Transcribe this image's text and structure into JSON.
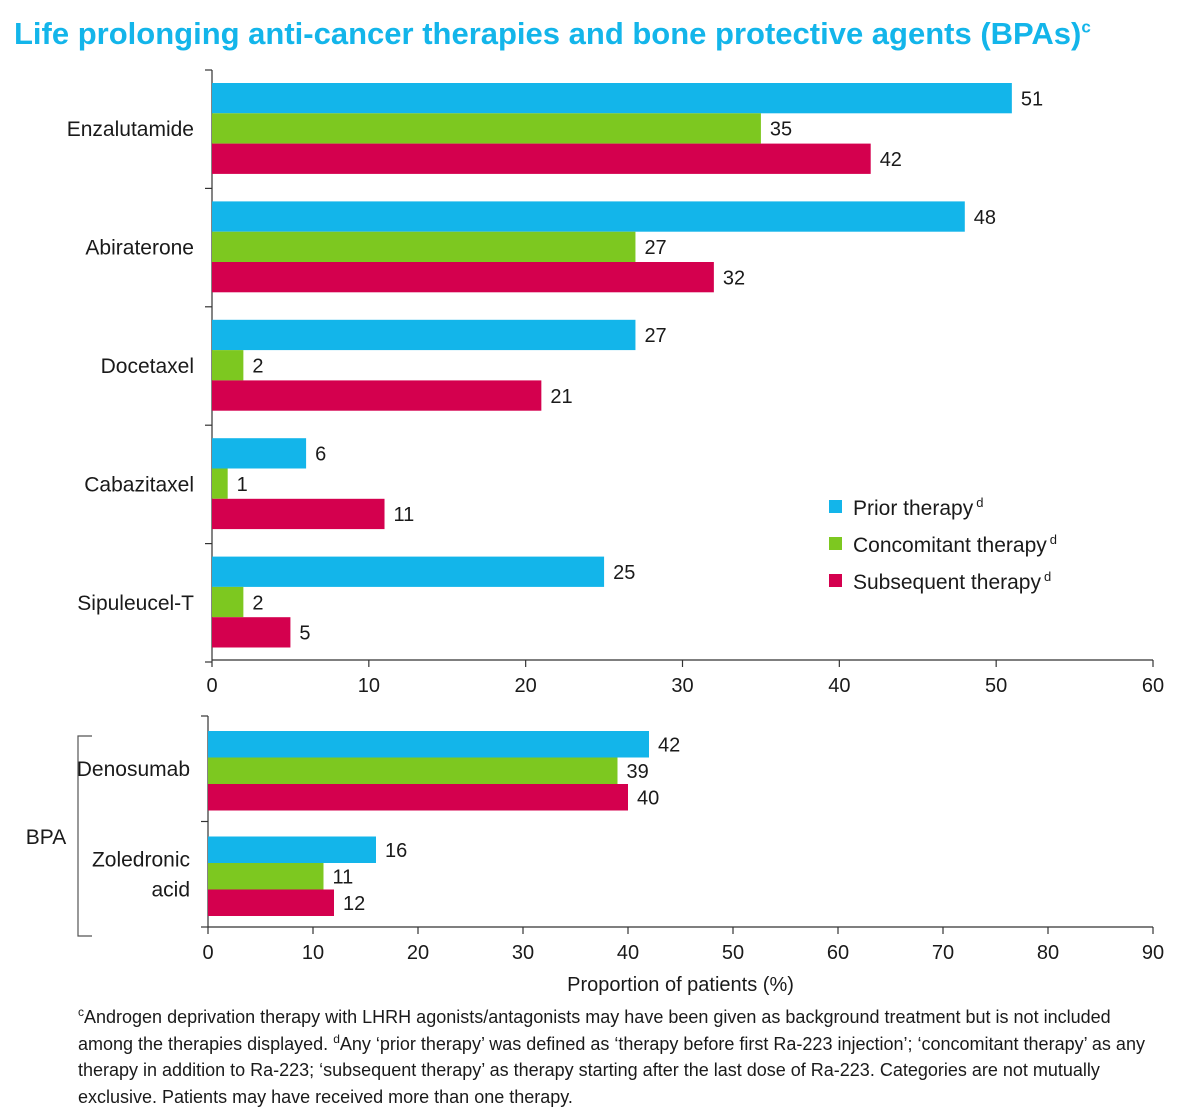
{
  "title": {
    "text": "Life prolonging anti-cancer therapies and bone protective agents (BPAs)",
    "sup": "c"
  },
  "legend": [
    {
      "label": "Prior therapy",
      "sup": "d",
      "color": "#13b5ea"
    },
    {
      "label": "Concomitant therapy",
      "sup": "d",
      "color": "#7dc820"
    },
    {
      "label": "Subsequent therapy",
      "sup": "d",
      "color": "#d4004e"
    }
  ],
  "footnote": {
    "sup_c": "c",
    "text_c": "Androgen deprivation therapy with LHRH agonists/antagonists may have been given as background treatment but is not included among the therapies displayed.",
    "sup_d": "d",
    "text_d": "Any ‘prior therapy’ was defined as ‘therapy before first Ra-223 injection’; ‘concomitant therapy’ as any therapy in addition to Ra-223; ‘subsequent therapy’ as therapy starting after the last dose of Ra-223. Categories are not mutually exclusive. Patients may have received more than one therapy."
  },
  "chart_data": [
    {
      "type": "bar",
      "orientation": "horizontal",
      "categories": [
        "Enzalutamide",
        "Abiraterone",
        "Docetaxel",
        "Cabazitaxel",
        "Sipuleucel-T"
      ],
      "series": [
        {
          "name": "Prior therapy",
          "values": [
            51,
            48,
            27,
            6,
            25
          ]
        },
        {
          "name": "Concomitant therapy",
          "values": [
            35,
            27,
            2,
            1,
            2
          ]
        },
        {
          "name": "Subsequent therapy",
          "values": [
            42,
            32,
            21,
            11,
            5
          ]
        }
      ],
      "xlim": [
        0,
        60
      ],
      "xticks": [
        0,
        10,
        20,
        30,
        40,
        50,
        60
      ],
      "legend_position": "right"
    },
    {
      "type": "bar",
      "orientation": "horizontal",
      "group_label": "BPA",
      "categories": [
        "Denosumab",
        "Zoledronic acid"
      ],
      "category_lines": [
        [
          "Denosumab"
        ],
        [
          "Zoledronic",
          "acid"
        ]
      ],
      "series": [
        {
          "name": "Prior therapy",
          "values": [
            42,
            16
          ]
        },
        {
          "name": "Concomitant therapy",
          "values": [
            39,
            11
          ]
        },
        {
          "name": "Subsequent therapy",
          "values": [
            40,
            12
          ]
        }
      ],
      "xlim": [
        0,
        90
      ],
      "xticks": [
        0,
        10,
        20,
        30,
        40,
        50,
        60,
        70,
        80,
        90
      ],
      "xlabel": "Proportion of patients (%)"
    }
  ]
}
